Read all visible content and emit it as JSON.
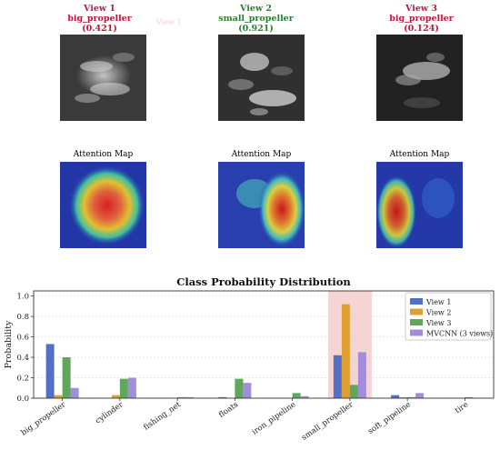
{
  "views": [
    {
      "label": "View 1",
      "pred": "big_propeller",
      "score": "(0.421)",
      "color": "#c4163c"
    },
    {
      "label": "View 2",
      "pred": "small_propeller",
      "score": "(0.921)",
      "color": "#2e7d32"
    },
    {
      "label": "View 3",
      "pred": "big_propeller",
      "score": "(0.124)",
      "color": "#c4163c"
    }
  ],
  "attention_title": "Attention Map",
  "ghost_text": "View 1",
  "chart_data": {
    "type": "bar",
    "title": "Class Probability Distribution",
    "xlabel": "",
    "ylabel": "Probability",
    "ylim": [
      0,
      1.05
    ],
    "yticks": [
      "0.0",
      "0.2",
      "0.4",
      "0.6",
      "0.8",
      "1.0"
    ],
    "grid": true,
    "legend_position": "top-right",
    "highlight_category": "small_propeller",
    "categories": [
      "big_propeller",
      "cylinder",
      "fishing_net",
      "floats",
      "iron_pipeline",
      "small_propeller",
      "soft_pipeline",
      "tire"
    ],
    "series": [
      {
        "name": "View 1",
        "color": "#5470c6",
        "values": [
          0.53,
          0.0,
          0.0,
          0.01,
          0.0,
          0.42,
          0.03,
          0.0
        ]
      },
      {
        "name": "View 2",
        "color": "#e0a030",
        "values": [
          0.03,
          0.03,
          0.0,
          0.0,
          0.0,
          0.92,
          0.01,
          0.0
        ]
      },
      {
        "name": "View 3",
        "color": "#5fa85b",
        "values": [
          0.4,
          0.19,
          0.01,
          0.19,
          0.05,
          0.13,
          0.01,
          0.01
        ]
      },
      {
        "name": "MVCNN (3 views)",
        "color": "#a38cdb",
        "values": [
          0.1,
          0.2,
          0.01,
          0.15,
          0.02,
          0.45,
          0.05,
          0.0
        ]
      }
    ]
  }
}
